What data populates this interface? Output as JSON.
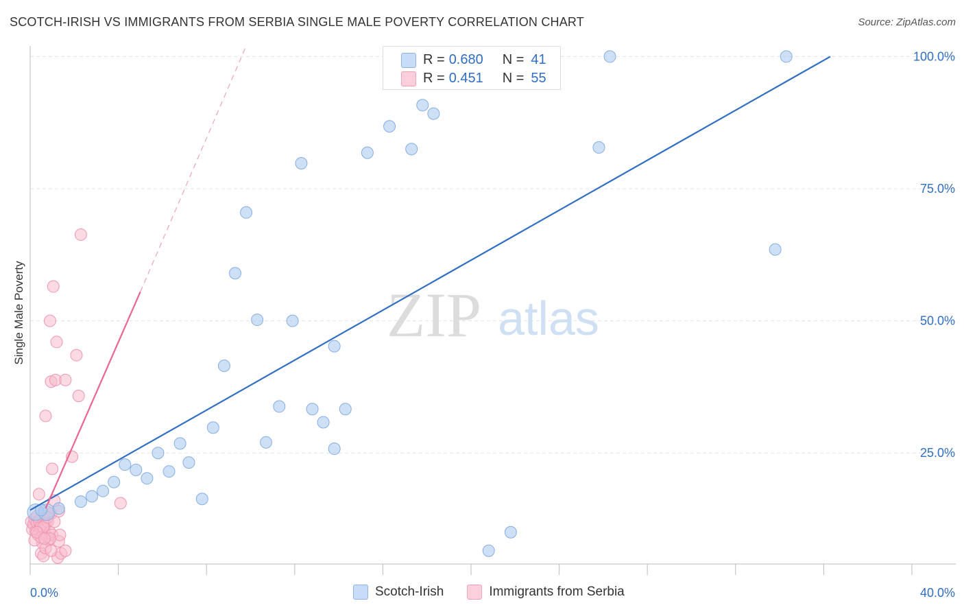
{
  "title": "SCOTCH-IRISH VS IMMIGRANTS FROM SERBIA SINGLE MALE POVERTY CORRELATION CHART",
  "source": "Source: ZipAtlas.com",
  "watermark": {
    "zip": "ZIP",
    "atlas": "atlas"
  },
  "legend": {
    "rows": [
      {
        "r_label": "R =",
        "r_value": "0.680",
        "n_label": "N =",
        "n_value": "41",
        "color": "#aecbf0"
      },
      {
        "r_label": "R =",
        "r_value": "0.451",
        "n_label": "N =",
        "n_value": "55",
        "color": "#f7bccd"
      }
    ]
  },
  "bottom_legend": [
    {
      "label": "Scotch-Irish",
      "color": "#aecbf0"
    },
    {
      "label": "Immigrants from Serbia",
      "color": "#f7bccd"
    }
  ],
  "chart_data": {
    "type": "scatter",
    "title": "SCOTCH-IRISH VS IMMIGRANTS FROM SERBIA SINGLE MALE POVERTY CORRELATION CHART",
    "xlabel": "",
    "ylabel": "Single Male Poverty",
    "xlim": [
      0,
      40
    ],
    "ylim": [
      4,
      102
    ],
    "x_tick_labels": [
      {
        "value": 0,
        "label": "0.0%"
      },
      {
        "value": 40,
        "label": "40.0%"
      }
    ],
    "y_tick_labels": [
      {
        "value": 25,
        "label": "25.0%"
      },
      {
        "value": 50,
        "label": "50.0%"
      },
      {
        "value": 75,
        "label": "75.0%"
      },
      {
        "value": 100,
        "label": "100.0%"
      }
    ],
    "grid": true,
    "series": [
      {
        "name": "Scotch-Irish",
        "color": "#2f6ec2",
        "fill": "#aecbf0",
        "points": [
          [
            0.25,
            13.8
          ],
          [
            0.75,
            13.8
          ],
          [
            1.3,
            14.5
          ],
          [
            2.3,
            15.8
          ],
          [
            2.8,
            16.8
          ],
          [
            3.3,
            17.8
          ],
          [
            3.8,
            19.5
          ],
          [
            4.3,
            22.8
          ],
          [
            4.8,
            21.8
          ],
          [
            5.3,
            20.2
          ],
          [
            5.8,
            25.0
          ],
          [
            6.3,
            21.5
          ],
          [
            6.8,
            26.8
          ],
          [
            7.2,
            23.2
          ],
          [
            7.8,
            16.3
          ],
          [
            8.3,
            29.8
          ],
          [
            8.8,
            41.5
          ],
          [
            9.3,
            59.0
          ],
          [
            9.8,
            70.5
          ],
          [
            10.3,
            50.2
          ],
          [
            10.7,
            27.0
          ],
          [
            11.3,
            33.8
          ],
          [
            11.9,
            50.0
          ],
          [
            12.3,
            79.8
          ],
          [
            12.8,
            33.3
          ],
          [
            13.3,
            30.8
          ],
          [
            13.8,
            45.2
          ],
          [
            14.3,
            33.3
          ],
          [
            13.8,
            25.8
          ],
          [
            15.3,
            81.8
          ],
          [
            16.3,
            86.8
          ],
          [
            17.3,
            82.5
          ],
          [
            17.8,
            90.8
          ],
          [
            18.3,
            89.2
          ],
          [
            20.8,
            6.5
          ],
          [
            21.8,
            10.0
          ],
          [
            25.8,
            82.8
          ],
          [
            26.3,
            100.0
          ],
          [
            33.8,
            63.5
          ],
          [
            34.3,
            100.0
          ],
          [
            0.5,
            14.2
          ]
        ],
        "trendline": {
          "x": [
            0,
            36.3
          ],
          "y": [
            14.2,
            100.0
          ]
        }
      },
      {
        "name": "Immigrants from Serbia",
        "color": "#e8668f",
        "fill": "#f7bccd",
        "points": [
          [
            0.05,
            12.0
          ],
          [
            0.1,
            10.5
          ],
          [
            0.15,
            11.5
          ],
          [
            0.2,
            12.5
          ],
          [
            0.25,
            10.2
          ],
          [
            0.3,
            11.8
          ],
          [
            0.35,
            9.5
          ],
          [
            0.4,
            12.2
          ],
          [
            0.45,
            10.8
          ],
          [
            0.5,
            11.2
          ],
          [
            0.55,
            8.0
          ],
          [
            0.6,
            9.8
          ],
          [
            0.65,
            10.5
          ],
          [
            0.7,
            11.5
          ],
          [
            0.75,
            9.2
          ],
          [
            0.8,
            12.0
          ],
          [
            0.85,
            8.5
          ],
          [
            0.9,
            10.0
          ],
          [
            0.95,
            13.5
          ],
          [
            1.0,
            9.5
          ],
          [
            0.4,
            17.2
          ],
          [
            0.5,
            6.0
          ],
          [
            0.6,
            5.5
          ],
          [
            0.7,
            32.0
          ],
          [
            0.8,
            13.8
          ],
          [
            0.9,
            50.0
          ],
          [
            0.95,
            38.5
          ],
          [
            1.0,
            22.0
          ],
          [
            1.05,
            56.5
          ],
          [
            1.1,
            16.0
          ],
          [
            1.15,
            38.8
          ],
          [
            1.2,
            46.0
          ],
          [
            1.25,
            5.2
          ],
          [
            1.3,
            8.3
          ],
          [
            1.35,
            9.5
          ],
          [
            1.4,
            6.0
          ],
          [
            1.6,
            38.8
          ],
          [
            1.6,
            6.5
          ],
          [
            1.9,
            24.3
          ],
          [
            2.1,
            43.5
          ],
          [
            2.2,
            35.8
          ],
          [
            2.3,
            66.3
          ],
          [
            4.1,
            15.5
          ],
          [
            0.3,
            13.0
          ],
          [
            0.2,
            8.5
          ],
          [
            0.6,
            11.0
          ],
          [
            0.9,
            8.8
          ],
          [
            0.7,
            7.0
          ],
          [
            0.8,
            12.8
          ],
          [
            0.5,
            9.0
          ],
          [
            0.3,
            10.0
          ],
          [
            1.1,
            12.0
          ],
          [
            0.95,
            6.5
          ],
          [
            1.3,
            14.0
          ],
          [
            0.65,
            8.8
          ]
        ],
        "trendline": {
          "x": [
            0.7,
            5.0
          ],
          "y": [
            14.5,
            55.5
          ]
        },
        "trendline_extension": {
          "x": [
            5.0,
            9.8
          ],
          "y": [
            55.5,
            102.0
          ]
        }
      }
    ]
  }
}
